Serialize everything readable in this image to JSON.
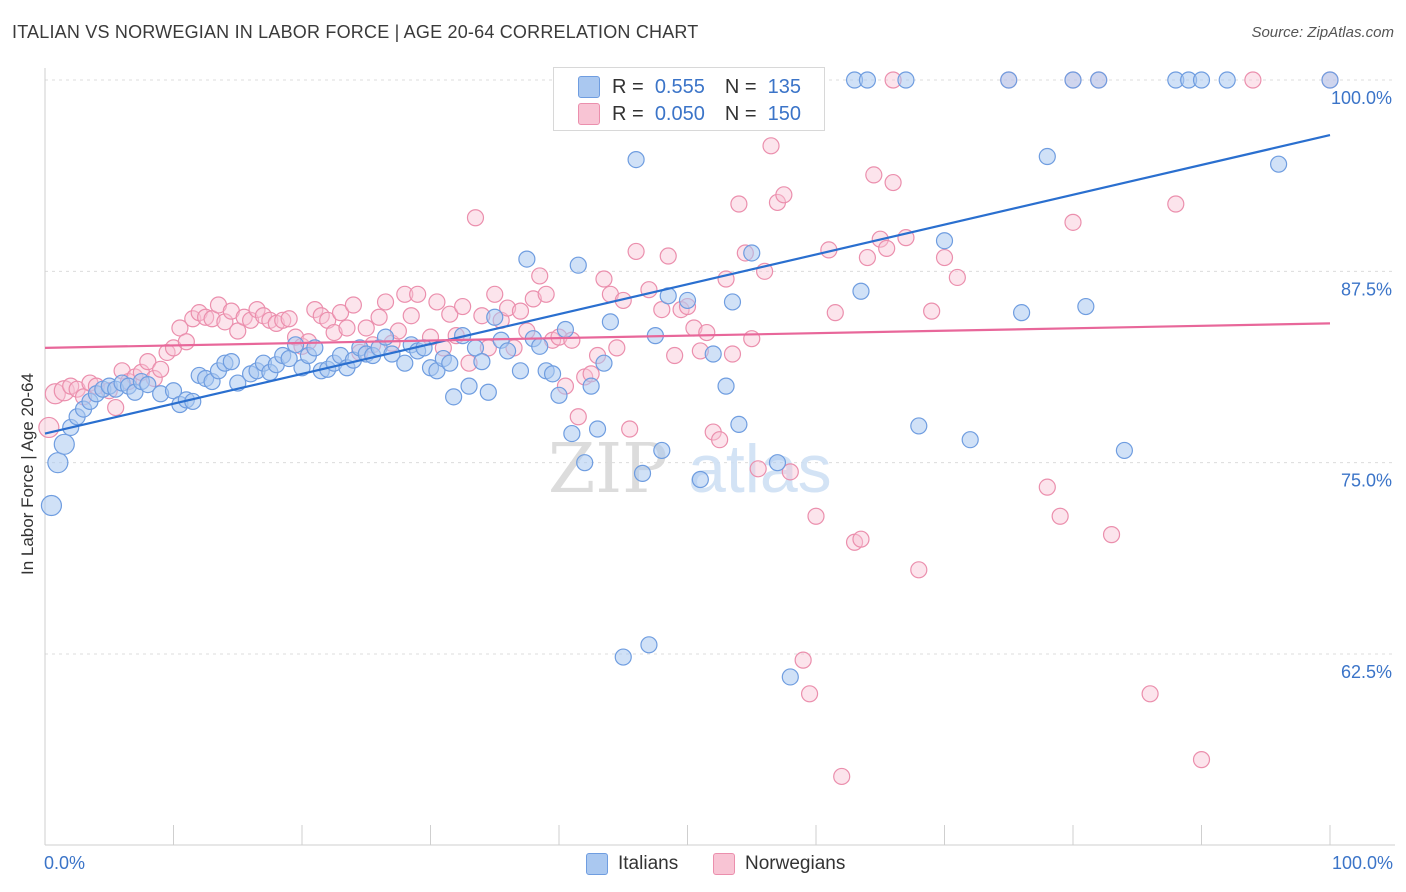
{
  "title": "ITALIAN VS NORWEGIAN IN LABOR FORCE | AGE 20-64 CORRELATION CHART",
  "source": "Source: ZipAtlas.com",
  "watermark": {
    "zip": "ZIP",
    "atlas": "atlas"
  },
  "legend": {
    "r_label": "R =",
    "n_label": "N =",
    "rows": [
      {
        "r": "0.555",
        "n": "135",
        "fill": "#aac8f0",
        "stroke": "#6f9de0"
      },
      {
        "r": "0.050",
        "n": "150",
        "fill": "#f8c4d4",
        "stroke": "#eb8fad"
      }
    ]
  },
  "bottom_legend": [
    "Italians",
    "Norwegians"
  ],
  "chart_data": {
    "type": "scatter",
    "title": "ITALIAN VS NORWEGIAN IN LABOR FORCE | AGE 20-64 CORRELATION CHART",
    "xlabel": "",
    "ylabel": "In Labor Force | Age 20-64",
    "xlim": [
      0,
      100
    ],
    "ylim": [
      51,
      102
    ],
    "x_tick_labels": [
      "0.0%",
      "100.0%"
    ],
    "y_ticks": [
      62.5,
      75.0,
      87.5,
      100.0
    ],
    "y_tick_labels": [
      "62.5%",
      "75.0%",
      "87.5%",
      "100.0%"
    ],
    "grid": true,
    "legend_position": "top-center",
    "colors": {
      "italians": "#6f9de0",
      "norwegians": "#eb8fad",
      "italians_line": "#2a6fcf",
      "norwegians_line": "#e8679a",
      "axis_text": "#3b74c8"
    },
    "series": [
      {
        "name": "Italians",
        "r": 0.555,
        "n": 135,
        "trend": {
          "x": [
            0,
            100
          ],
          "y": [
            76.9,
            96.4
          ]
        },
        "points": [
          [
            0.5,
            72.2
          ],
          [
            1,
            75
          ],
          [
            1.5,
            76.2
          ],
          [
            2,
            77.3
          ],
          [
            2.5,
            78
          ],
          [
            3,
            78.5
          ],
          [
            3.5,
            79
          ],
          [
            4,
            79.5
          ],
          [
            4.5,
            79.8
          ],
          [
            5,
            80
          ],
          [
            5.5,
            79.8
          ],
          [
            6,
            80.2
          ],
          [
            6.5,
            80
          ],
          [
            7,
            79.6
          ],
          [
            7.5,
            80.3
          ],
          [
            8,
            80.1
          ],
          [
            9,
            79.5
          ],
          [
            10,
            79.7
          ],
          [
            10.5,
            78.8
          ],
          [
            11,
            79.1
          ],
          [
            11.5,
            79
          ],
          [
            12,
            80.7
          ],
          [
            12.5,
            80.5
          ],
          [
            13,
            80.3
          ],
          [
            13.5,
            81
          ],
          [
            14,
            81.5
          ],
          [
            14.5,
            81.6
          ],
          [
            15,
            80.2
          ],
          [
            16,
            80.8
          ],
          [
            16.5,
            81
          ],
          [
            17,
            81.5
          ],
          [
            17.5,
            80.9
          ],
          [
            18,
            81.4
          ],
          [
            18.5,
            82
          ],
          [
            19,
            81.8
          ],
          [
            19.5,
            82.7
          ],
          [
            20,
            81.2
          ],
          [
            20.5,
            82
          ],
          [
            21,
            82.5
          ],
          [
            21.5,
            81
          ],
          [
            22,
            81.1
          ],
          [
            22.5,
            81.5
          ],
          [
            23,
            82
          ],
          [
            23.5,
            81.2
          ],
          [
            24,
            81.7
          ],
          [
            24.5,
            82.5
          ],
          [
            25,
            82.1
          ],
          [
            25.5,
            82
          ],
          [
            26,
            82.5
          ],
          [
            26.5,
            83.2
          ],
          [
            27,
            82.1
          ],
          [
            28,
            81.5
          ],
          [
            28.5,
            82.7
          ],
          [
            29,
            82.3
          ],
          [
            29.5,
            82.5
          ],
          [
            30,
            81.2
          ],
          [
            30.5,
            81
          ],
          [
            31,
            81.8
          ],
          [
            31.5,
            81.5
          ],
          [
            31.8,
            79.3
          ],
          [
            32.5,
            83.3
          ],
          [
            33,
            80
          ],
          [
            33.5,
            82.5
          ],
          [
            34,
            81.6
          ],
          [
            34.5,
            79.6
          ],
          [
            35,
            84.5
          ],
          [
            35.5,
            83
          ],
          [
            36,
            82.3
          ],
          [
            37,
            81
          ],
          [
            37.5,
            88.3
          ],
          [
            38,
            83.1
          ],
          [
            38.5,
            82.6
          ],
          [
            39,
            81
          ],
          [
            39.5,
            80.8
          ],
          [
            40,
            79.4
          ],
          [
            40.5,
            83.7
          ],
          [
            41,
            76.9
          ],
          [
            41.5,
            87.9
          ],
          [
            42,
            75
          ],
          [
            42.5,
            80
          ],
          [
            43,
            77.2
          ],
          [
            43.5,
            81.5
          ],
          [
            44,
            84.2
          ],
          [
            45,
            62.3
          ],
          [
            46,
            94.8
          ],
          [
            46.5,
            74.3
          ],
          [
            47,
            63.1
          ],
          [
            47.5,
            83.3
          ],
          [
            48,
            75.8
          ],
          [
            48.5,
            85.9
          ],
          [
            50,
            85.6
          ],
          [
            51,
            73.9
          ],
          [
            52,
            82.1
          ],
          [
            53,
            80
          ],
          [
            53.5,
            85.5
          ],
          [
            54,
            77.5
          ],
          [
            55,
            88.7
          ],
          [
            57,
            75
          ],
          [
            58,
            61
          ],
          [
            60,
            100
          ],
          [
            63,
            100
          ],
          [
            63.5,
            86.2
          ],
          [
            64,
            100
          ],
          [
            67,
            100
          ],
          [
            68,
            77.4
          ],
          [
            70,
            89.5
          ],
          [
            72,
            76.5
          ],
          [
            75,
            100
          ],
          [
            76,
            84.8
          ],
          [
            78,
            95
          ],
          [
            80,
            100
          ],
          [
            81,
            85.2
          ],
          [
            82,
            100
          ],
          [
            84,
            75.8
          ],
          [
            88,
            100
          ],
          [
            89,
            100
          ],
          [
            90,
            100
          ],
          [
            92,
            100
          ],
          [
            96,
            94.5
          ],
          [
            100,
            100
          ],
          [
            45,
            100
          ],
          [
            49,
            100
          ],
          [
            52,
            100
          ],
          [
            56,
            100
          ],
          [
            58,
            100
          ],
          [
            59,
            100
          ]
        ]
      },
      {
        "name": "Norwegians",
        "r": 0.05,
        "n": 150,
        "trend": {
          "x": [
            0,
            100
          ],
          "y": [
            82.5,
            84.1
          ]
        },
        "points": [
          [
            0.3,
            77.3
          ],
          [
            0.8,
            79.5
          ],
          [
            1.5,
            79.7
          ],
          [
            2,
            80
          ],
          [
            2.5,
            79.8
          ],
          [
            3,
            79.3
          ],
          [
            3.5,
            80.2
          ],
          [
            4,
            80
          ],
          [
            5,
            79.7
          ],
          [
            5.5,
            78.6
          ],
          [
            6,
            81
          ],
          [
            6.5,
            80.3
          ],
          [
            7,
            80.6
          ],
          [
            7.5,
            80.9
          ],
          [
            8,
            81.6
          ],
          [
            8.5,
            80.5
          ],
          [
            9,
            81.1
          ],
          [
            9.5,
            82.2
          ],
          [
            10,
            82.5
          ],
          [
            10.5,
            83.8
          ],
          [
            11,
            82.9
          ],
          [
            11.5,
            84.4
          ],
          [
            12,
            84.8
          ],
          [
            12.5,
            84.5
          ],
          [
            13,
            84.4
          ],
          [
            13.5,
            85.3
          ],
          [
            14,
            84.2
          ],
          [
            14.5,
            84.9
          ],
          [
            15,
            83.6
          ],
          [
            15.5,
            84.5
          ],
          [
            16,
            84.3
          ],
          [
            16.5,
            85
          ],
          [
            17,
            84.6
          ],
          [
            17.5,
            84.3
          ],
          [
            18,
            84.1
          ],
          [
            18.5,
            84.3
          ],
          [
            19,
            84.4
          ],
          [
            19.5,
            83.2
          ],
          [
            20,
            82.6
          ],
          [
            20.5,
            82.9
          ],
          [
            21,
            85
          ],
          [
            21.5,
            84.6
          ],
          [
            22,
            84.3
          ],
          [
            22.5,
            83.5
          ],
          [
            23,
            84.8
          ],
          [
            23.5,
            83.8
          ],
          [
            24,
            85.3
          ],
          [
            24.5,
            82.2
          ],
          [
            25,
            83.8
          ],
          [
            25.5,
            82.7
          ],
          [
            26,
            84.5
          ],
          [
            26.5,
            85.5
          ],
          [
            27,
            82.8
          ],
          [
            27.5,
            83.6
          ],
          [
            28,
            86
          ],
          [
            28.5,
            84.6
          ],
          [
            29,
            86
          ],
          [
            30,
            83.2
          ],
          [
            30.5,
            85.5
          ],
          [
            31,
            82.5
          ],
          [
            31.5,
            84.7
          ],
          [
            32,
            83.3
          ],
          [
            32.5,
            85.2
          ],
          [
            33,
            81.5
          ],
          [
            33.5,
            91
          ],
          [
            34,
            84.6
          ],
          [
            34.5,
            82.5
          ],
          [
            35,
            86
          ],
          [
            35.5,
            84.3
          ],
          [
            36,
            85.1
          ],
          [
            36.5,
            82.5
          ],
          [
            37,
            84.9
          ],
          [
            37.5,
            83.6
          ],
          [
            38,
            85.7
          ],
          [
            38.5,
            87.2
          ],
          [
            39,
            86
          ],
          [
            39.5,
            83
          ],
          [
            40,
            83.2
          ],
          [
            40.5,
            80
          ],
          [
            41,
            83
          ],
          [
            41.5,
            78
          ],
          [
            42,
            80.6
          ],
          [
            42.5,
            80.8
          ],
          [
            43,
            82
          ],
          [
            43.5,
            87
          ],
          [
            44,
            86
          ],
          [
            44.5,
            82.5
          ],
          [
            45,
            85.6
          ],
          [
            45.5,
            77.2
          ],
          [
            46,
            88.8
          ],
          [
            47,
            86.3
          ],
          [
            48,
            85
          ],
          [
            48.5,
            88.5
          ],
          [
            49,
            82
          ],
          [
            49.5,
            85
          ],
          [
            50,
            85.2
          ],
          [
            50.5,
            83.8
          ],
          [
            51,
            82.3
          ],
          [
            51.5,
            83.5
          ],
          [
            52,
            77
          ],
          [
            52.5,
            76.5
          ],
          [
            53,
            87
          ],
          [
            53.5,
            82.1
          ],
          [
            54,
            91.9
          ],
          [
            54.5,
            88.7
          ],
          [
            55,
            83.1
          ],
          [
            55.5,
            74.6
          ],
          [
            56,
            87.5
          ],
          [
            56.5,
            95.7
          ],
          [
            57,
            92
          ],
          [
            57.5,
            92.5
          ],
          [
            58,
            74.4
          ],
          [
            59,
            62.1
          ],
          [
            59.5,
            59.9
          ],
          [
            60,
            71.5
          ],
          [
            61,
            88.9
          ],
          [
            61.5,
            84.8
          ],
          [
            62,
            54.5
          ],
          [
            63,
            69.8
          ],
          [
            63.5,
            70
          ],
          [
            64,
            88.4
          ],
          [
            64.5,
            93.8
          ],
          [
            65,
            89.6
          ],
          [
            65.5,
            89
          ],
          [
            66,
            93.3
          ],
          [
            67,
            89.7
          ],
          [
            68,
            68
          ],
          [
            69,
            84.9
          ],
          [
            70,
            88.4
          ],
          [
            71,
            87.1
          ],
          [
            78,
            73.4
          ],
          [
            79,
            71.5
          ],
          [
            80,
            90.7
          ],
          [
            83,
            70.3
          ],
          [
            86,
            59.9
          ],
          [
            88,
            91.9
          ],
          [
            90,
            55.6
          ],
          [
            94,
            100
          ],
          [
            100,
            100
          ],
          [
            75,
            100
          ],
          [
            66,
            100
          ],
          [
            58,
            100
          ],
          [
            80,
            100
          ],
          [
            82,
            100
          ]
        ]
      }
    ]
  }
}
